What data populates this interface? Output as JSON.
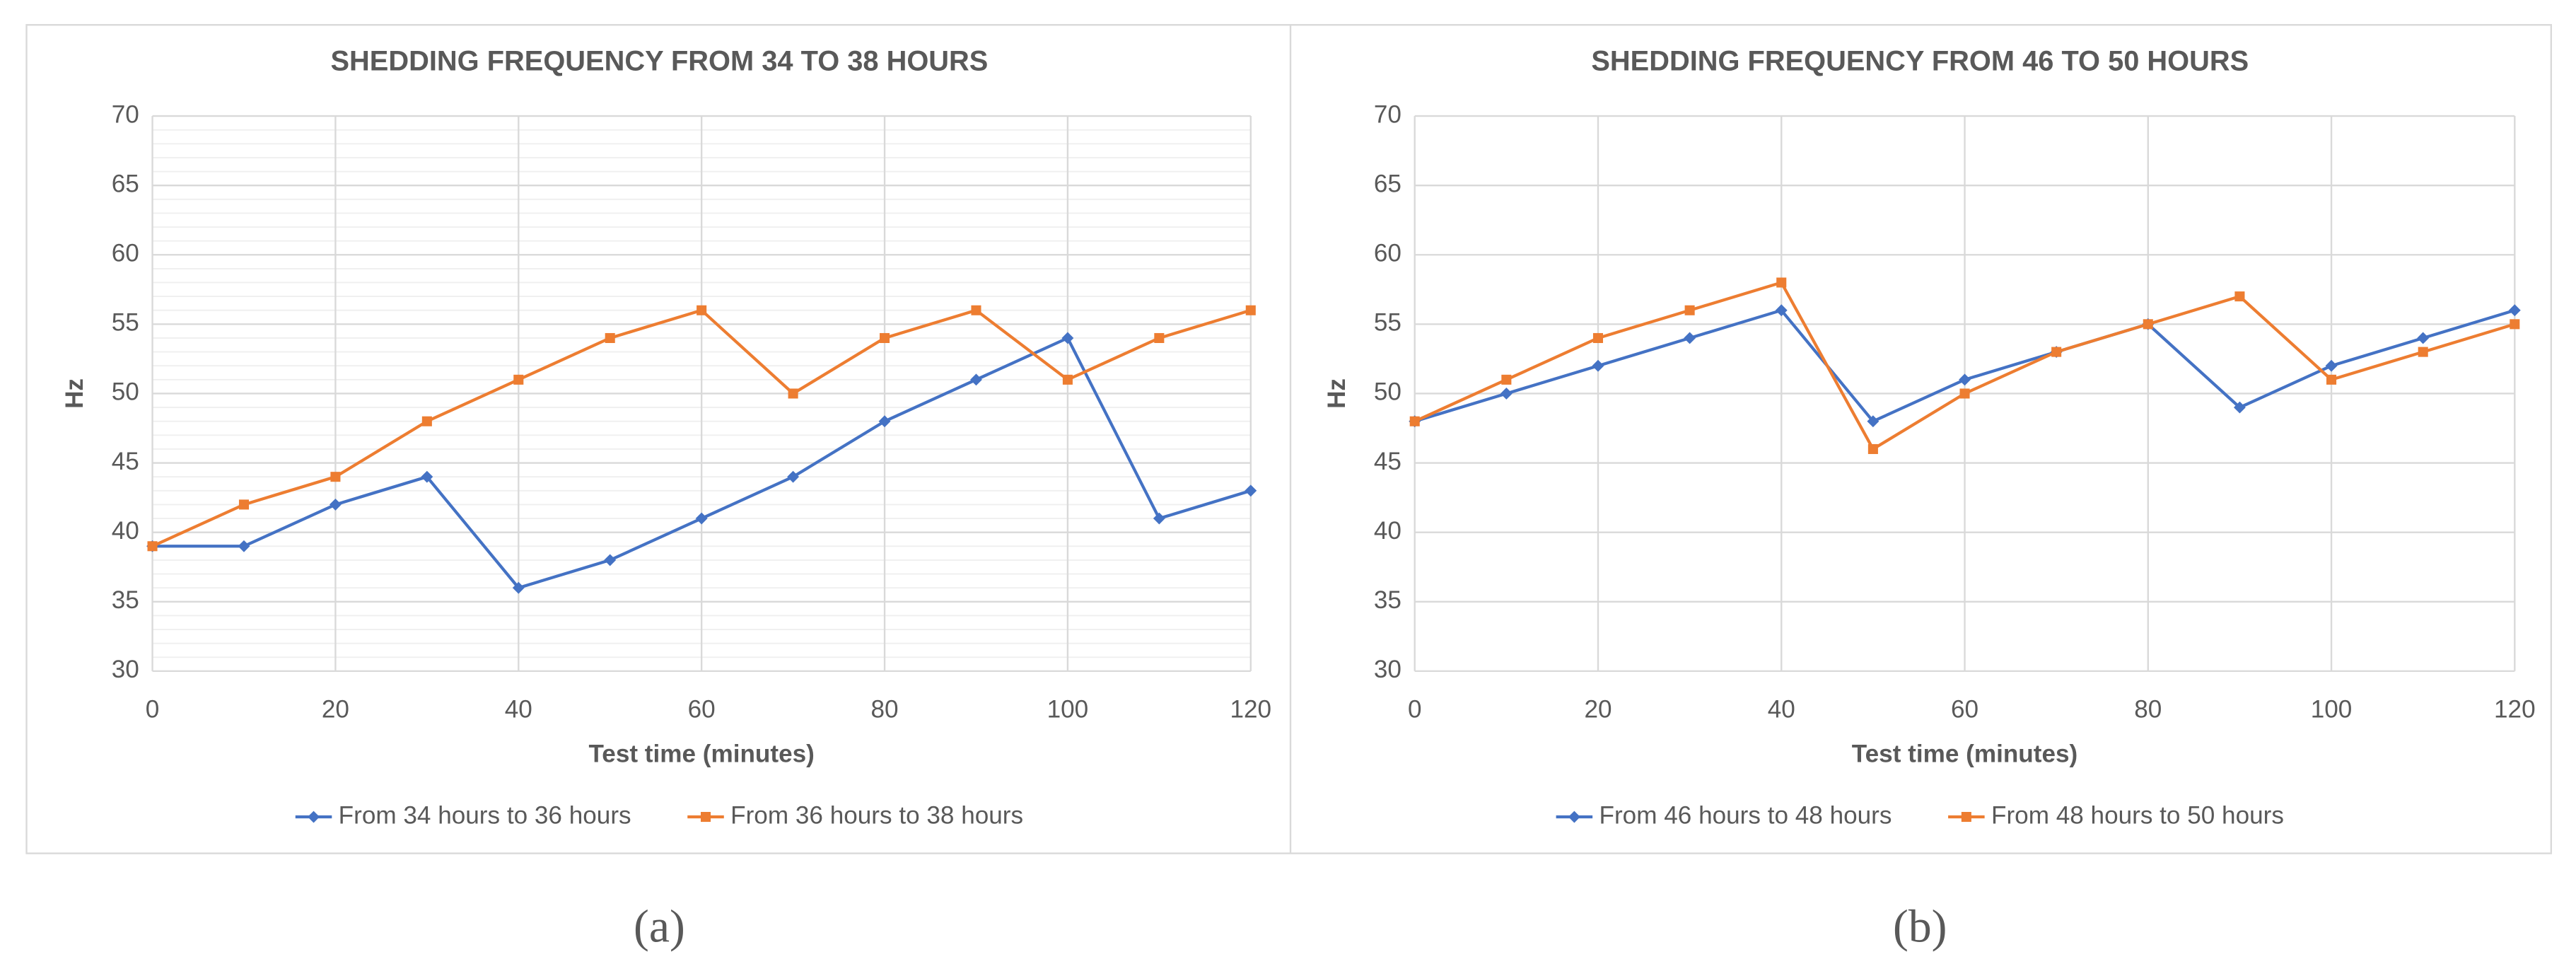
{
  "chart_data": [
    {
      "type": "line",
      "title": "SHEDDING FREQUENCY FROM 34 TO 38 HOURS",
      "x_label": "Test time (minutes)",
      "y_label": "Hz",
      "caption": "(a)",
      "x": [
        0,
        10,
        20,
        30,
        40,
        50,
        60,
        70,
        80,
        90,
        100,
        110,
        120
      ],
      "series": [
        {
          "name": "From 34 hours to 36 hours",
          "color": "#4472c4",
          "marker": "diamond",
          "values": [
            39,
            39,
            42,
            44,
            36,
            38,
            41,
            44,
            48,
            51,
            54,
            41,
            43
          ]
        },
        {
          "name": "From 36 hours to 38 hours",
          "color": "#ed7d31",
          "marker": "square",
          "values": [
            39,
            42,
            44,
            48,
            51,
            54,
            56,
            50,
            54,
            56,
            51,
            54,
            56
          ]
        }
      ],
      "xlim": [
        0,
        120
      ],
      "xticks": [
        0,
        20,
        40,
        60,
        80,
        100,
        120
      ],
      "ylim": [
        30,
        70
      ],
      "yticks": [
        30,
        35,
        40,
        45,
        50,
        55,
        60,
        65,
        70
      ],
      "grid": true,
      "minor_step": 1,
      "legend": "bottom"
    },
    {
      "type": "line",
      "title": "SHEDDING FREQUENCY FROM 46 TO 50 HOURS",
      "x_label": "Test time (minutes)",
      "y_label": "Hz",
      "caption": "(b)",
      "x": [
        0,
        10,
        20,
        30,
        40,
        50,
        60,
        70,
        80,
        90,
        100,
        110,
        120
      ],
      "series": [
        {
          "name": "From 46 hours to 48 hours",
          "color": "#4472c4",
          "marker": "diamond",
          "values": [
            48,
            50,
            52,
            54,
            56,
            48,
            51,
            53,
            55,
            49,
            52,
            54,
            56
          ]
        },
        {
          "name": "From 48 hours to 50 hours",
          "color": "#ed7d31",
          "marker": "square",
          "values": [
            48,
            51,
            54,
            56,
            58,
            46,
            50,
            53,
            55,
            57,
            51,
            53,
            55
          ]
        }
      ],
      "xlim": [
        0,
        120
      ],
      "xticks": [
        0,
        20,
        40,
        60,
        80,
        100,
        120
      ],
      "ylim": [
        30,
        70
      ],
      "yticks": [
        30,
        35,
        40,
        45,
        50,
        55,
        60,
        65,
        70
      ],
      "grid": true,
      "legend": "bottom"
    }
  ]
}
